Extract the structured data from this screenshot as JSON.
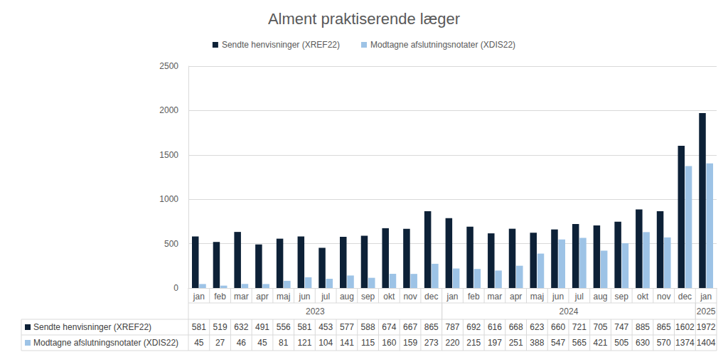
{
  "chart_data": {
    "type": "bar",
    "title": "Alment praktiserende læger",
    "categories": [
      "jan",
      "feb",
      "mar",
      "apr",
      "maj",
      "jun",
      "jul",
      "aug",
      "sep",
      "okt",
      "nov",
      "dec",
      "jan",
      "feb",
      "mar",
      "apr",
      "maj",
      "jun",
      "jul",
      "aug",
      "sep",
      "okt",
      "nov",
      "dec",
      "jan"
    ],
    "groups": [
      "2023",
      "2023",
      "2023",
      "2023",
      "2023",
      "2023",
      "2023",
      "2023",
      "2023",
      "2023",
      "2023",
      "2023",
      "2024",
      "2024",
      "2024",
      "2024",
      "2024",
      "2024",
      "2024",
      "2024",
      "2024",
      "2024",
      "2024",
      "2024",
      "2025"
    ],
    "series": [
      {
        "name": "Sendte henvisninger (XREF22)",
        "color": "#0d2137",
        "values": [
          581,
          519,
          632,
          491,
          556,
          581,
          453,
          577,
          588,
          674,
          667,
          865,
          787,
          692,
          616,
          668,
          623,
          660,
          721,
          705,
          747,
          885,
          865,
          1602,
          1972
        ]
      },
      {
        "name": "Modtagne afslutningsnotater (XDIS22)",
        "color": "#9dc3e6",
        "values": [
          45,
          27,
          46,
          45,
          81,
          121,
          104,
          141,
          115,
          160,
          159,
          273,
          220,
          215,
          197,
          251,
          388,
          547,
          565,
          421,
          505,
          630,
          570,
          1374,
          1404
        ]
      }
    ],
    "ylim": [
      0,
      2500
    ],
    "yticks": [
      0,
      500,
      1000,
      1500,
      2000,
      2500
    ],
    "grid": true,
    "legend": "top"
  }
}
